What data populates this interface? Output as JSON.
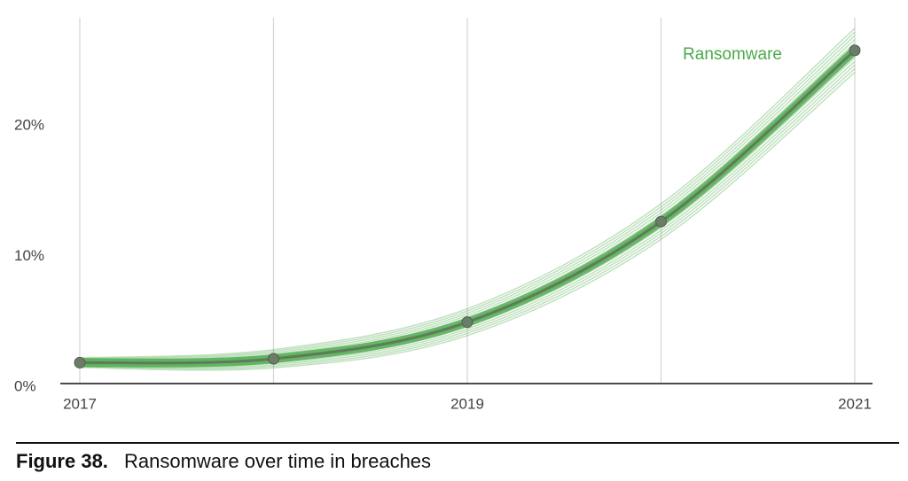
{
  "chart_data": {
    "type": "line",
    "categories": [
      "2017",
      null,
      "2019",
      null,
      "2021"
    ],
    "series": [
      {
        "name": "Ransomware",
        "color": "#4aaa48",
        "values": [
          1.6,
          1.9,
          4.7,
          12.4,
          25.5
        ]
      }
    ],
    "ylim": [
      0,
      28
    ],
    "yticks": [
      {
        "value": 0,
        "label": "0%"
      },
      {
        "value": 10,
        "label": "10%"
      },
      {
        "value": 20,
        "label": "20%"
      }
    ],
    "grid": true
  },
  "caption": {
    "label": "Figure 38.",
    "text": "Ransomware over time in breaches"
  }
}
